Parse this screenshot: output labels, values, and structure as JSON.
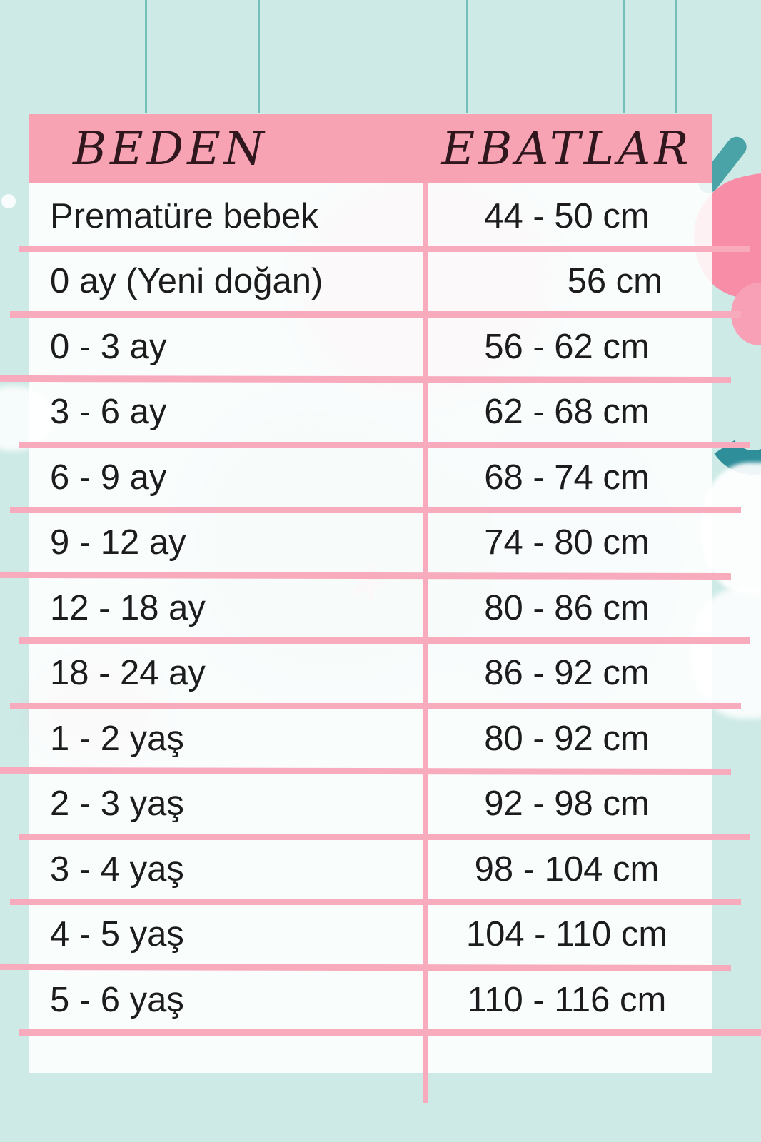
{
  "header": {
    "col1": "BEDEN",
    "col2": "EBATLAR"
  },
  "chart_data": {
    "type": "table",
    "columns": [
      "BEDEN",
      "EBATLAR"
    ],
    "rows": [
      {
        "beden": "Prematüre bebek",
        "ebat": "44 - 50 cm",
        "align": "center"
      },
      {
        "beden": "0 ay (Yeni doğan)",
        "ebat": "56 cm",
        "align": "right"
      },
      {
        "beden": "0 - 3 ay",
        "ebat": "56 - 62 cm",
        "align": "center"
      },
      {
        "beden": "3 - 6 ay",
        "ebat": "62 - 68 cm",
        "align": "center"
      },
      {
        "beden": "6 - 9 ay",
        "ebat": "68 - 74 cm",
        "align": "center"
      },
      {
        "beden": "9 - 12 ay",
        "ebat": "74 - 80 cm",
        "align": "center"
      },
      {
        "beden": "12 - 18 ay",
        "ebat": "80 - 86 cm",
        "align": "center"
      },
      {
        "beden": "18 - 24 ay",
        "ebat": "86 - 92 cm",
        "align": "center"
      },
      {
        "beden": "1 - 2 yaş",
        "ebat": "80 - 92 cm",
        "align": "center"
      },
      {
        "beden": "2 - 3 yaş",
        "ebat": "92 - 98 cm",
        "align": "center"
      },
      {
        "beden": "3 - 4 yaş",
        "ebat": "98 - 104 cm",
        "align": "center"
      },
      {
        "beden": "4 - 5 yaş",
        "ebat": "104 - 110 cm",
        "align": "center"
      },
      {
        "beden": "5 - 6 yaş",
        "ebat": "110 - 116 cm",
        "align": "center"
      }
    ]
  },
  "colors": {
    "background_mint": "#cdeae6",
    "header_pink": "#f7a3b3",
    "line_pink": "#f7abbc",
    "cell_white_translucent": "rgba(255,255,255,0.88)",
    "text_dark": "#1c1c1e",
    "header_text": "#30171e",
    "string_teal": "#74c0b8",
    "decor_teal_dark": "#2e8f9a",
    "decor_teal_leaf": "#4aa3a6",
    "decor_pink_balloon": "#f78da6"
  }
}
